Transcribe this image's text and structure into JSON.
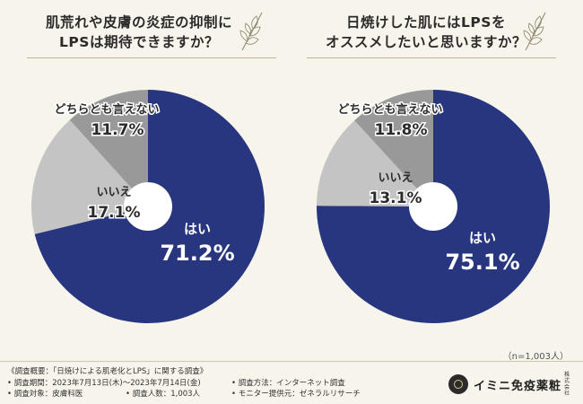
{
  "colors": {
    "yes": "#27367f",
    "no": "#c4c4c4",
    "neutral": "#999999",
    "background": "#f7f4ec"
  },
  "chart_data": [
    {
      "type": "pie",
      "title": "肌荒れや皮膚の炎症の抑制に\nLPSは期待できますか？",
      "slices": [
        {
          "label": "はい",
          "value": 71.2,
          "display": "71.2%",
          "color": "#27367f"
        },
        {
          "label": "いいえ",
          "value": 17.1,
          "display": "17.1%",
          "color": "#c4c4c4"
        },
        {
          "label": "どちらとも言えない",
          "value": 11.7,
          "display": "11.7%",
          "color": "#999999"
        }
      ]
    },
    {
      "type": "pie",
      "title": "日焼けした肌にはLPSを\nオススメしたいと思いますか？",
      "slices": [
        {
          "label": "はい",
          "value": 75.1,
          "display": "75.1%",
          "color": "#27367f"
        },
        {
          "label": "いいえ",
          "value": 13.1,
          "display": "13.1%",
          "color": "#c4c4c4"
        },
        {
          "label": "どちらとも言えない",
          "value": 11.8,
          "display": "11.8%",
          "color": "#999999"
        }
      ]
    }
  ],
  "sample_note": "（n=1,003人）",
  "footer": {
    "summary": "《調査概要：「日焼けによる肌老化とLPS」に関する調査》",
    "period": "• 調査期間：2023年7月13日(木)～2023年7月14日(金)",
    "method": "• 調査方法：インターネット調査",
    "target": "• 調査対象：皮膚科医",
    "count": "• 調査人数：1,003人",
    "provider": "• モニター提供元：ゼネラルリサーチ"
  },
  "brand": {
    "name": "イミニ免疫薬粧",
    "sub": "株式会社",
    "logo_icon": "brand-logo-icon"
  }
}
